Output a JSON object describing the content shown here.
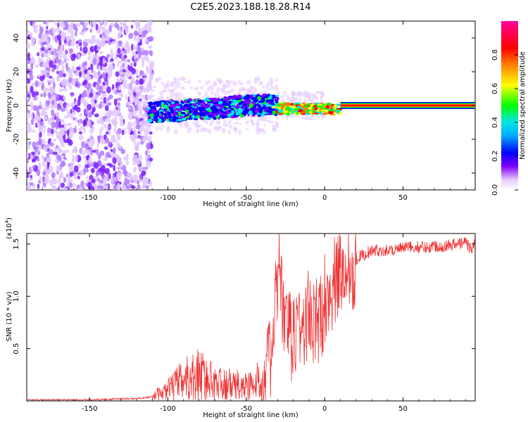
{
  "chart_data": [
    {
      "type": "heatmap",
      "title": "C2E5.2023.188.18.28.R14",
      "xlabel": "Height of straight line (km)",
      "ylabel": "Frequency (Hz)",
      "xlim": [
        -190,
        96
      ],
      "ylim": [
        -50,
        50
      ],
      "xticks": [
        -150,
        -100,
        -50,
        0,
        50
      ],
      "yticks": [
        -40,
        -20,
        0,
        20,
        40
      ],
      "colorbar": {
        "label": "Normalized spectral amplitude",
        "range": [
          0,
          1
        ],
        "ticks": [
          "0.0",
          "0.2",
          "0.4",
          "0.6",
          "0.8"
        ],
        "colors": [
          "#e6ccff",
          "#8000ff",
          "#0000ff",
          "#00e6e6",
          "#00ff00",
          "#ffff00",
          "#ff8000",
          "#ff0000",
          "#ff00ff"
        ]
      },
      "regions": [
        {
          "x": [
            -190,
            -110
          ],
          "freq": [
            -50,
            50
          ],
          "amplitude": "0.0-0.3",
          "note": "broadband noise"
        },
        {
          "x": [
            -110,
            -30
          ],
          "freq": [
            -8,
            8
          ],
          "amplitude": "0.2-0.5"
        },
        {
          "x": [
            -30,
            10
          ],
          "freq": [
            -4,
            2
          ],
          "amplitude": "0.4-0.9"
        },
        {
          "x": [
            10,
            96
          ],
          "freq": [
            -1,
            1
          ],
          "amplitude": "0.9-1.0",
          "note": "steady 0 Hz tone"
        }
      ]
    },
    {
      "type": "line",
      "title": "",
      "xlabel": "Height of straight line (km)",
      "ylabel": "SNR (10 * v/v)",
      "scale_label": "(x10",
      "scale_exp": "4",
      "xlim": [
        -190,
        96
      ],
      "ylim": [
        0,
        1.6
      ],
      "xticks": [
        -150,
        -100,
        -50,
        0,
        50
      ],
      "yticks": [
        0.5,
        1.0,
        1.5
      ],
      "line_color": "#ee3333",
      "series": [
        {
          "x": [
            -190,
            -170,
            -150,
            -130,
            -120,
            -115,
            -110,
            -105,
            -100,
            -95,
            -90,
            -85,
            -80,
            -75,
            -70,
            -65,
            -60,
            -55,
            -50,
            -45,
            -40,
            -35,
            -32,
            -30,
            -29,
            -27,
            -25,
            -22,
            -20,
            -17,
            -15,
            -12,
            -10,
            -7,
            -5,
            -2,
            0,
            2,
            5,
            8,
            10,
            12,
            15,
            18,
            20,
            22,
            25,
            28,
            30,
            35,
            40,
            45,
            50,
            55,
            60,
            65,
            70,
            75,
            80,
            85,
            90,
            93,
            96
          ],
          "y": [
            0.01,
            0.01,
            0.01,
            0.02,
            0.02,
            0.03,
            0.04,
            0.07,
            0.1,
            0.15,
            0.2,
            0.22,
            0.25,
            0.2,
            0.17,
            0.15,
            0.15,
            0.14,
            0.14,
            0.16,
            0.2,
            0.4,
            0.7,
            1.2,
            1.5,
            0.9,
            0.7,
            0.6,
            0.6,
            0.8,
            0.65,
            0.75,
            0.85,
            0.7,
            0.75,
            0.8,
            1.0,
            1.05,
            1.1,
            1.15,
            1.25,
            1.2,
            1.28,
            1.3,
            1.35,
            1.38,
            1.4,
            1.42,
            1.43,
            1.44,
            1.44,
            1.45,
            1.46,
            1.47,
            1.47,
            1.47,
            1.48,
            1.48,
            1.49,
            1.5,
            1.52,
            1.45,
            1.5
          ]
        }
      ]
    }
  ]
}
